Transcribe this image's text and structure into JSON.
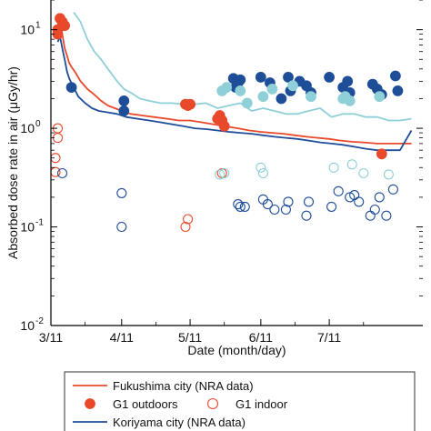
{
  "chart_data": {
    "type": "line",
    "xlabel": "Date (month/day)",
    "ylabel": "Absorbed dose rate in air (μGy/hr)",
    "yscale": "log",
    "ylim": [
      0.01,
      20
    ],
    "xlim": [
      "2011-03-11",
      "2011-08-21"
    ],
    "grid": false,
    "legend_position": "bottom-outside",
    "x_ticks": [
      {
        "date": "2011-03-11",
        "label": "3/11"
      },
      {
        "date": "2011-04-11",
        "label": "4/11"
      },
      {
        "date": "2011-05-11",
        "label": "5/11"
      },
      {
        "date": "2011-06-11",
        "label": "6/11"
      },
      {
        "date": "2011-07-11",
        "label": "7/11"
      }
    ],
    "y_ticks": [
      {
        "value": 0.01,
        "label": "10",
        "exp": "-2"
      },
      {
        "value": 0.1,
        "label": "10",
        "exp": "-1"
      },
      {
        "value": 1,
        "label": "10",
        "exp": "0"
      },
      {
        "value": 10,
        "label": "10",
        "exp": "1"
      }
    ],
    "series": [
      {
        "name": "Fukushima city (NRA data)",
        "kind": "line",
        "color": "#e8492b",
        "points": [
          [
            "2011-03-14",
            8.5
          ],
          [
            "2011-03-15",
            11
          ],
          [
            "2011-03-16",
            9
          ],
          [
            "2011-03-17",
            6.5
          ],
          [
            "2011-03-18",
            5.5
          ],
          [
            "2011-03-19",
            4.6
          ],
          [
            "2011-03-20",
            4.2
          ],
          [
            "2011-03-22",
            3.6
          ],
          [
            "2011-03-24",
            3.0
          ],
          [
            "2011-03-27",
            2.5
          ],
          [
            "2011-03-30",
            2.2
          ],
          [
            "2011-04-02",
            1.9
          ],
          [
            "2011-04-05",
            1.7
          ],
          [
            "2011-04-08",
            1.6
          ],
          [
            "2011-04-11",
            1.5
          ],
          [
            "2011-04-15",
            1.4
          ],
          [
            "2011-04-20",
            1.35
          ],
          [
            "2011-04-25",
            1.3
          ],
          [
            "2011-05-01",
            1.25
          ],
          [
            "2011-05-06",
            1.2
          ],
          [
            "2011-05-11",
            1.2
          ],
          [
            "2011-05-16",
            1.15
          ],
          [
            "2011-05-21",
            1.1
          ],
          [
            "2011-05-26",
            1.05
          ],
          [
            "2011-06-01",
            1.0
          ],
          [
            "2011-06-06",
            0.95
          ],
          [
            "2011-06-11",
            0.92
          ],
          [
            "2011-06-16",
            0.9
          ],
          [
            "2011-06-21",
            0.88
          ],
          [
            "2011-06-26",
            0.85
          ],
          [
            "2011-07-01",
            0.82
          ],
          [
            "2011-07-06",
            0.8
          ],
          [
            "2011-07-11",
            0.78
          ],
          [
            "2011-07-16",
            0.75
          ],
          [
            "2011-07-21",
            0.73
          ],
          [
            "2011-07-26",
            0.72
          ],
          [
            "2011-08-01",
            0.7
          ],
          [
            "2011-08-06",
            0.7
          ],
          [
            "2011-08-11",
            0.7
          ],
          [
            "2011-08-16",
            0.7
          ]
        ]
      },
      {
        "name": "Koriyama city (NRA data)",
        "kind": "line",
        "color": "#1f4e99",
        "points": [
          [
            "2011-03-14",
            7.5
          ],
          [
            "2011-03-15",
            8.5
          ],
          [
            "2011-03-16",
            6.5
          ],
          [
            "2011-03-17",
            5.0
          ],
          [
            "2011-03-18",
            3.8
          ],
          [
            "2011-03-19",
            3.2
          ],
          [
            "2011-03-21",
            2.6
          ],
          [
            "2011-03-23",
            2.1
          ],
          [
            "2011-03-26",
            1.8
          ],
          [
            "2011-03-29",
            1.6
          ],
          [
            "2011-04-01",
            1.5
          ],
          [
            "2011-04-05",
            1.45
          ],
          [
            "2011-04-09",
            1.4
          ],
          [
            "2011-04-13",
            1.3
          ],
          [
            "2011-04-18",
            1.25
          ],
          [
            "2011-04-23",
            1.2
          ],
          [
            "2011-04-28",
            1.15
          ],
          [
            "2011-05-03",
            1.1
          ],
          [
            "2011-05-08",
            1.05
          ],
          [
            "2011-05-13",
            1.0
          ],
          [
            "2011-05-18",
            0.98
          ],
          [
            "2011-05-23",
            0.95
          ],
          [
            "2011-05-28",
            0.92
          ],
          [
            "2011-06-02",
            0.9
          ],
          [
            "2011-06-07",
            0.88
          ],
          [
            "2011-06-12",
            0.85
          ],
          [
            "2011-06-17",
            0.82
          ],
          [
            "2011-06-22",
            0.8
          ],
          [
            "2011-06-27",
            0.78
          ],
          [
            "2011-07-02",
            0.75
          ],
          [
            "2011-07-07",
            0.72
          ],
          [
            "2011-07-12",
            0.7
          ],
          [
            "2011-07-17",
            0.68
          ],
          [
            "2011-07-22",
            0.65
          ],
          [
            "2011-07-27",
            0.62
          ],
          [
            "2011-08-01",
            0.6
          ],
          [
            "2011-08-06",
            0.6
          ],
          [
            "2011-08-11",
            0.6
          ],
          [
            "2011-08-16",
            0.95
          ]
        ]
      },
      {
        "name": "",
        "kind": "line",
        "color": "#8fd0d8",
        "points": [
          [
            "2011-03-21",
            15
          ],
          [
            "2011-03-24",
            12
          ],
          [
            "2011-03-27",
            8
          ],
          [
            "2011-03-30",
            6
          ],
          [
            "2011-04-02",
            5.0
          ],
          [
            "2011-04-05",
            4.0
          ],
          [
            "2011-04-09",
            3.0
          ],
          [
            "2011-04-12",
            2.5
          ],
          [
            "2011-04-15",
            2.3
          ],
          [
            "2011-04-19",
            2.0
          ],
          [
            "2011-04-23",
            1.9
          ],
          [
            "2011-04-28",
            1.8
          ],
          [
            "2011-05-03",
            1.8
          ],
          [
            "2011-05-08",
            1.75
          ],
          [
            "2011-05-13",
            1.75
          ],
          [
            "2011-05-18",
            1.8
          ],
          [
            "2011-05-23",
            1.6
          ],
          [
            "2011-05-28",
            1.7
          ],
          [
            "2011-06-02",
            1.8
          ],
          [
            "2011-06-07",
            1.5
          ],
          [
            "2011-06-12",
            1.6
          ],
          [
            "2011-06-17",
            1.5
          ],
          [
            "2011-06-22",
            1.4
          ],
          [
            "2011-06-27",
            1.4
          ],
          [
            "2011-07-02",
            1.5
          ],
          [
            "2011-07-07",
            1.6
          ],
          [
            "2011-07-12",
            1.3
          ],
          [
            "2011-07-17",
            1.4
          ],
          [
            "2011-07-22",
            1.4
          ],
          [
            "2011-07-27",
            1.3
          ],
          [
            "2011-08-01",
            1.3
          ],
          [
            "2011-08-06",
            1.2
          ],
          [
            "2011-08-11",
            1.2
          ],
          [
            "2011-08-16",
            1.25
          ]
        ]
      },
      {
        "name": "G1 outdoors",
        "kind": "filled-marker",
        "color": "#e8492b",
        "points": [
          [
            "2011-03-14",
            10
          ],
          [
            "2011-03-15",
            13
          ],
          [
            "2011-03-16",
            12
          ],
          [
            "2011-03-17",
            11
          ],
          [
            "2011-03-14",
            9.0
          ],
          [
            "2011-05-09",
            1.75
          ],
          [
            "2011-05-10",
            1.7
          ],
          [
            "2011-05-11",
            1.75
          ],
          [
            "2011-05-24",
            1.35
          ],
          [
            "2011-05-25",
            1.2
          ],
          [
            "2011-05-26",
            1.05
          ],
          [
            "2011-05-23",
            1.25
          ],
          [
            "2011-08-03",
            0.55
          ]
        ]
      },
      {
        "name": "G1 indoor",
        "kind": "open-marker",
        "color": "#e8492b",
        "points": [
          [
            "2011-03-14",
            1.0
          ],
          [
            "2011-03-14",
            0.8
          ],
          [
            "2011-03-13",
            0.5
          ],
          [
            "2011-03-13",
            0.36
          ],
          [
            "2011-05-09",
            0.1
          ],
          [
            "2011-05-10",
            0.12
          ],
          [
            "2011-05-25",
            0.35
          ]
        ]
      },
      {
        "name": "",
        "kind": "filled-marker",
        "color": "#1f4e99",
        "points": [
          [
            "2011-03-20",
            2.6
          ],
          [
            "2011-04-12",
            1.9
          ],
          [
            "2011-04-12",
            1.5
          ],
          [
            "2011-05-30",
            3.2
          ],
          [
            "2011-05-31",
            2.6
          ],
          [
            "2011-06-01",
            2.9
          ],
          [
            "2011-06-02",
            3.1
          ],
          [
            "2011-06-11",
            3.3
          ],
          [
            "2011-06-15",
            2.9
          ],
          [
            "2011-06-20",
            2.0
          ],
          [
            "2011-06-23",
            3.3
          ],
          [
            "2011-06-24",
            2.4
          ],
          [
            "2011-06-28",
            3.0
          ],
          [
            "2011-07-01",
            2.7
          ],
          [
            "2011-07-03",
            2.3
          ],
          [
            "2011-07-11",
            3.3
          ],
          [
            "2011-07-17",
            2.6
          ],
          [
            "2011-07-19",
            3.0
          ],
          [
            "2011-07-20",
            2.3
          ],
          [
            "2011-07-30",
            2.8
          ],
          [
            "2011-08-01",
            2.5
          ],
          [
            "2011-08-03",
            2.2
          ],
          [
            "2011-08-09",
            3.4
          ],
          [
            "2011-08-10",
            2.4
          ]
        ]
      },
      {
        "name": "",
        "kind": "filled-marker",
        "color": "#8fd0d8",
        "points": [
          [
            "2011-05-25",
            2.4
          ],
          [
            "2011-05-27",
            2.6
          ],
          [
            "2011-06-02",
            2.4
          ],
          [
            "2011-06-05",
            1.8
          ],
          [
            "2011-06-12",
            2.1
          ],
          [
            "2011-06-16",
            2.5
          ],
          [
            "2011-06-25",
            2.7
          ],
          [
            "2011-07-03",
            2.1
          ],
          [
            "2011-07-17",
            2.0
          ],
          [
            "2011-07-18",
            2.1
          ],
          [
            "2011-07-20",
            1.9
          ],
          [
            "2011-08-02",
            2.1
          ]
        ]
      },
      {
        "name": "",
        "kind": "open-marker",
        "color": "#1f4e99",
        "points": [
          [
            "2011-03-16",
            0.35
          ],
          [
            "2011-04-11",
            0.22
          ],
          [
            "2011-04-11",
            0.1
          ],
          [
            "2011-06-01",
            0.17
          ],
          [
            "2011-06-02",
            0.16
          ],
          [
            "2011-06-04",
            0.16
          ],
          [
            "2011-06-12",
            0.19
          ],
          [
            "2011-06-14",
            0.17
          ],
          [
            "2011-06-17",
            0.15
          ],
          [
            "2011-06-22",
            0.15
          ],
          [
            "2011-06-23",
            0.18
          ],
          [
            "2011-07-01",
            0.13
          ],
          [
            "2011-07-02",
            0.18
          ],
          [
            "2011-07-12",
            0.16
          ],
          [
            "2011-07-15",
            0.23
          ],
          [
            "2011-07-20",
            0.2
          ],
          [
            "2011-07-22",
            0.21
          ],
          [
            "2011-07-24",
            0.18
          ],
          [
            "2011-07-29",
            0.13
          ],
          [
            "2011-07-31",
            0.15
          ],
          [
            "2011-08-02",
            0.2
          ],
          [
            "2011-08-05",
            0.13
          ],
          [
            "2011-08-08",
            0.24
          ]
        ]
      },
      {
        "name": "",
        "kind": "open-marker",
        "color": "#8fd0d8",
        "points": [
          [
            "2011-05-24",
            0.34
          ],
          [
            "2011-05-26",
            0.35
          ],
          [
            "2011-06-11",
            0.4
          ],
          [
            "2011-06-12",
            0.35
          ],
          [
            "2011-07-13",
            0.4
          ],
          [
            "2011-07-21",
            0.43
          ],
          [
            "2011-07-26",
            0.35
          ],
          [
            "2011-08-06",
            0.34
          ]
        ]
      }
    ],
    "legend": [
      {
        "label": "Fukushima city (NRA data)",
        "marker": "line",
        "color": "#e8492b"
      },
      {
        "label": "G1 outdoors",
        "marker": "filled",
        "color": "#e8492b"
      },
      {
        "label": "G1 indoor",
        "marker": "open",
        "color": "#e8492b"
      },
      {
        "label": "Koriyama city (NRA data)",
        "marker": "line",
        "color": "#1f4e99"
      }
    ]
  }
}
